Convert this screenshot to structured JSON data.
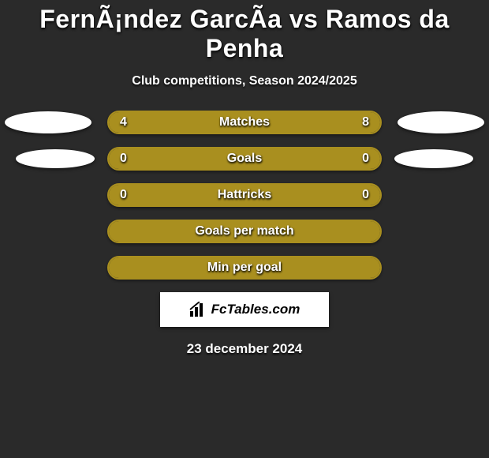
{
  "title": "FernÃ¡ndez GarcÃ­a vs Ramos da Penha",
  "subtitle": "Club competitions, Season 2024/2025",
  "bar_border_color": "#a98f1f",
  "bar_fill_color": "#a98f1f",
  "background_color": "#2a2a2a",
  "ellipse_color": "#ffffff",
  "rows": [
    {
      "label": "Matches",
      "left_val": "4",
      "right_val": "8",
      "left_pct": 33.3,
      "right_pct": 66.7,
      "ellipses": "big"
    },
    {
      "label": "Goals",
      "left_val": "0",
      "right_val": "0",
      "left_pct": 50,
      "right_pct": 50,
      "ellipses": "small"
    },
    {
      "label": "Hattricks",
      "left_val": "0",
      "right_val": "0",
      "left_pct": 50,
      "right_pct": 50,
      "ellipses": "none"
    },
    {
      "label": "Goals per match",
      "left_val": "",
      "right_val": "",
      "left_pct": 50,
      "right_pct": 50,
      "ellipses": "none"
    },
    {
      "label": "Min per goal",
      "left_val": "",
      "right_val": "",
      "left_pct": 50,
      "right_pct": 50,
      "ellipses": "none"
    }
  ],
  "logo_text": "FcTables.com",
  "date_text": "23 december 2024",
  "fontsizes": {
    "title": 32,
    "subtitle": 16,
    "bar_label": 16,
    "bar_val": 16,
    "logo": 17,
    "date": 17
  }
}
